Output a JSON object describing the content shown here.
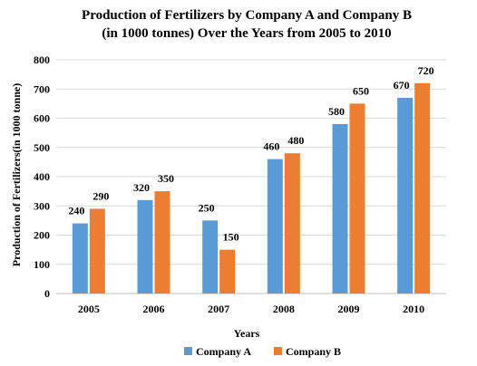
{
  "chart_data": {
    "type": "bar",
    "title_line1": "Production of Fertilizers by Company A and Company B",
    "title_line2": "(in 1000 tonnes) Over the Years from 2005 to 2010",
    "xlabel": "Years",
    "ylabel": "Production of Fertilizers(in 1000 tonne)",
    "categories": [
      "2005",
      "2006",
      "2007",
      "2008",
      "2009",
      "2010"
    ],
    "series": [
      {
        "name": "Company A",
        "color": "#5b9bd5",
        "values": [
          240,
          320,
          250,
          460,
          580,
          670
        ]
      },
      {
        "name": "Company B",
        "color": "#ed7d31",
        "values": [
          290,
          350,
          150,
          480,
          650,
          720
        ]
      }
    ],
    "ylim": [
      0,
      800
    ],
    "yticks": [
      0,
      100,
      200,
      300,
      400,
      500,
      600,
      700,
      800
    ],
    "grid": true,
    "legend_position": "bottom"
  }
}
